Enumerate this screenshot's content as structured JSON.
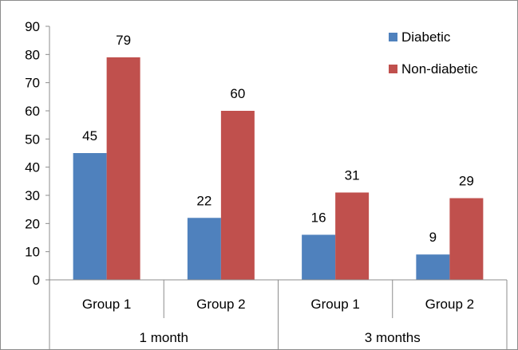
{
  "chart_data": {
    "type": "bar",
    "title": "",
    "xlabel": "",
    "ylabel": "",
    "ylim": [
      0,
      90
    ],
    "yticks": [
      "0",
      "10",
      "20",
      "30",
      "40",
      "50",
      "60",
      "70",
      "80",
      "90"
    ],
    "grid": false,
    "legend_position": "top-right",
    "categories": [
      "Group 1",
      "Group 2",
      "Group 1",
      "Group 2"
    ],
    "category_groups": [
      {
        "label": "1 month",
        "span": 2
      },
      {
        "label": "3 months",
        "span": 2
      }
    ],
    "series": [
      {
        "name": "Diabetic",
        "color": "#4f81bd",
        "values": [
          45,
          22,
          16,
          9
        ],
        "labels": [
          "45",
          "22",
          "16",
          "9"
        ]
      },
      {
        "name": "Non-diabetic",
        "color": "#c0504d",
        "values": [
          79,
          60,
          31,
          29
        ],
        "labels": [
          "79",
          "60",
          "31",
          "29"
        ]
      }
    ]
  }
}
